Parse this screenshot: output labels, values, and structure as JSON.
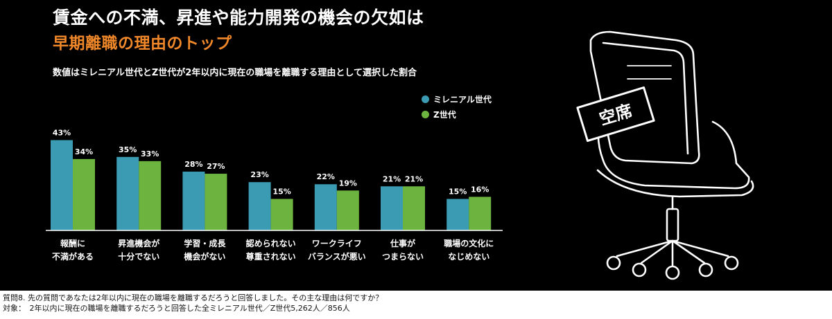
{
  "header": {
    "title_line1": "賃金への不満、昇進や能力開発の機会の欠如は",
    "title_line2": "早期離職の理由のトップ",
    "subtitle": "数値はミレニアル世代とZ世代が2年以内に現在の職場を離職する理由として選択した割合"
  },
  "chair": {
    "sign_label": "空席",
    "icon": "office-chair-icon"
  },
  "colors": {
    "background": "#000000",
    "title_accent": "#f0882a",
    "millennial": "#3a9bb3",
    "genz": "#6cb33f"
  },
  "chart_data": {
    "type": "bar",
    "categories": [
      [
        "報酬に",
        "不満がある"
      ],
      [
        "昇進機会が",
        "十分でない"
      ],
      [
        "学習・成長",
        "機会がない"
      ],
      [
        "認められない",
        "尊重されない"
      ],
      [
        "ワークライフ",
        "バランスが悪い"
      ],
      [
        "仕事が",
        "つまらない"
      ],
      [
        "職場の文化に",
        "なじめない"
      ]
    ],
    "series": [
      {
        "name": "ミレニアル世代",
        "values": [
          43,
          35,
          28,
          23,
          22,
          21,
          15
        ],
        "labels": [
          "43%",
          "35%",
          "28%",
          "23%",
          "22%",
          "21%",
          "15%"
        ]
      },
      {
        "name": "Z世代",
        "values": [
          34,
          33,
          27,
          15,
          19,
          21,
          16
        ],
        "labels": [
          "34%",
          "33%",
          "27%",
          "15%",
          "19%",
          "21%",
          "16%"
        ]
      }
    ],
    "unit": "%",
    "ylim": [
      0,
      45
    ],
    "grid": false,
    "legend_position": "top-right"
  },
  "footer": {
    "question": "質問8. 先の質問であなたは2年以内に現在の職場を離職するだろうと回答しました。その主な理由は何ですか？",
    "target": "対象：　2年以内に現在の職場を離職するだろうと回答した全ミレニアル世代／Z世代5,262人／856人"
  }
}
